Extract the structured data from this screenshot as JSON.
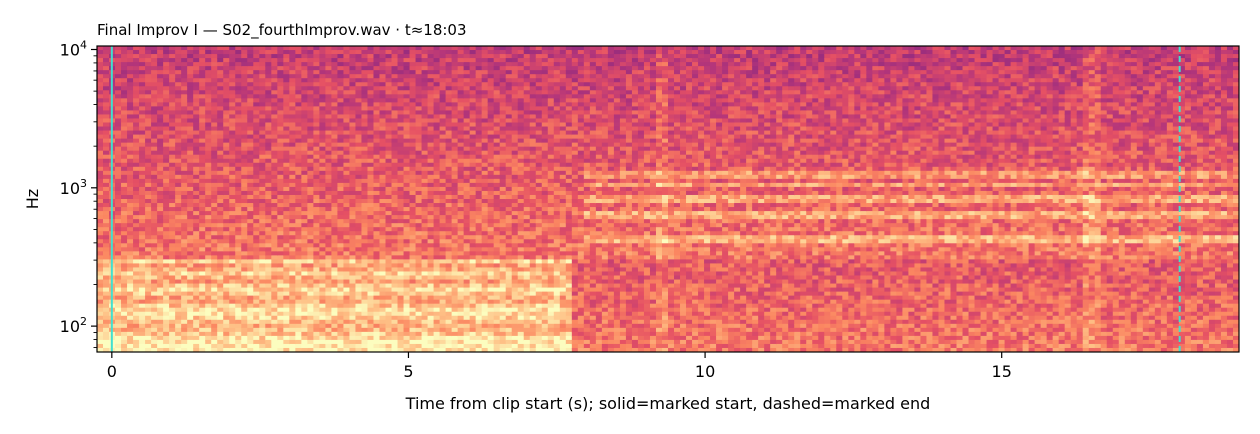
{
  "chart_data": {
    "type": "heatmap",
    "title": "Final Improv I  —  S02_fourthImprov.wav · t≈18:03",
    "xlabel": "Time from clip start (s); solid=marked start, dashed=marked end",
    "ylabel": "Hz",
    "x_ticks": [
      0,
      5,
      10,
      15
    ],
    "x_tick_labels": [
      "0",
      "5",
      "10",
      "15"
    ],
    "xlim": [
      -0.25,
      19.0
    ],
    "y_scale": "log",
    "y_ticks": [
      100,
      1000,
      10000
    ],
    "y_tick_labels": [
      {
        "base": "10",
        "exp": "2"
      },
      {
        "base": "10",
        "exp": "3"
      },
      {
        "base": "10",
        "exp": "4"
      }
    ],
    "ylim": [
      65,
      10600
    ],
    "colormap": "magma",
    "markers": [
      {
        "name": "marked start",
        "x": 0.0,
        "style": "solid",
        "color": "#40e0d0"
      },
      {
        "name": "marked end",
        "x": 18.0,
        "style": "dashed",
        "color": "#40e0d0"
      }
    ],
    "description_features": {
      "sustained_low_band_hz_until_s": [
        60,
        300,
        7.8
      ],
      "harmonic_partials_hz_from_s": [
        [
          420,
          8
        ],
        [
          630,
          8
        ],
        [
          820,
          8
        ],
        [
          1030,
          8
        ],
        [
          1250,
          8
        ]
      ],
      "onset_columns_s": [
        9.3,
        16.5
      ]
    }
  }
}
